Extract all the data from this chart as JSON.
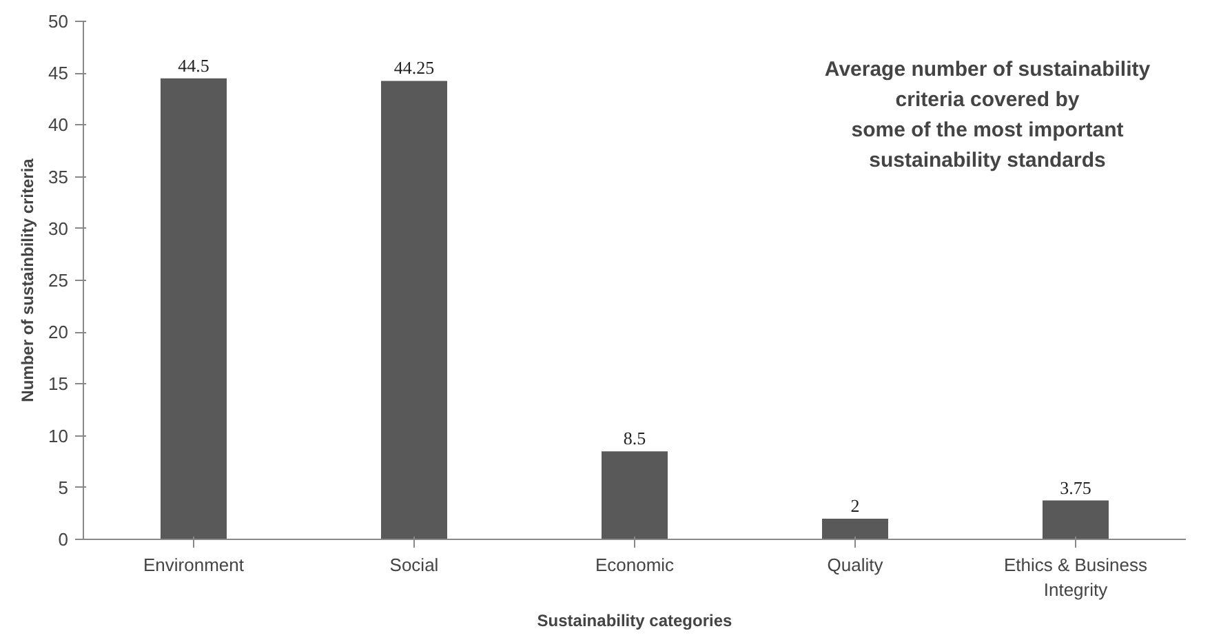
{
  "chart_data": {
    "type": "bar",
    "title": "Average number of sustainability\ncriteria covered by\nsome of the most important\nsustainability standards",
    "xlabel": "Sustainability categories",
    "ylabel": "Number of sustainbility criteria",
    "categories": [
      "Environment",
      "Social",
      "Economic",
      "Quality",
      "Ethics & Business Integrity"
    ],
    "values": [
      44.5,
      44.25,
      8.5,
      2,
      3.75
    ],
    "color": "#595959",
    "ylim": [
      0,
      50
    ],
    "yticks": [
      0,
      5,
      10,
      15,
      20,
      25,
      30,
      35,
      40,
      45,
      50
    ],
    "grid": false,
    "data_labels": true
  }
}
